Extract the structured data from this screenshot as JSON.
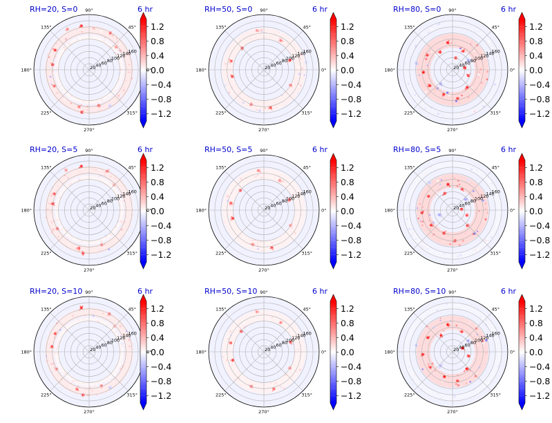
{
  "colors": {
    "title_text": "#0000cc",
    "axis_text": "#000000",
    "grid": "#b0b0b0",
    "bg_blue": "#f1f2ff",
    "bg_red": "#ffecec",
    "positive": "#ff0000",
    "negative": "#0000ff",
    "neutral": "#ffffff"
  },
  "colorbar": {
    "ticks": [
      "1.2",
      "0.8",
      "0.4",
      "0.0",
      "−0.4",
      "−0.8",
      "−1.2"
    ],
    "tick_values": [
      1.2,
      0.8,
      0.4,
      0.0,
      -0.4,
      -0.8,
      -1.2
    ],
    "vmin": -1.4,
    "vmax": 1.4,
    "extend": "both",
    "colormap": "bwr"
  },
  "polar_axis": {
    "angle_labels": [
      "0°",
      "45°",
      "90°",
      "135°",
      "180°",
      "225°",
      "270°",
      "315°"
    ],
    "angle_values_deg": [
      0,
      45,
      90,
      135,
      180,
      225,
      270,
      315
    ],
    "radial_labels": [
      "20",
      "40",
      "60",
      "80",
      "100",
      "120",
      "140",
      "160"
    ],
    "radial_values": [
      20,
      40,
      60,
      80,
      100,
      120,
      140,
      160
    ],
    "rmax": 180
  },
  "chart_data": [
    {
      "type": "heatmap",
      "projection": "polar",
      "title_left": "RH=20, S=0",
      "title_right": "6 hr",
      "rings": [
        {
          "r": 130,
          "width": 28,
          "value": 0.12
        },
        {
          "r": 105,
          "width": 14,
          "value": 0.05
        }
      ],
      "hotspots": [
        {
          "theta": 100,
          "r": 145,
          "v": 1.3
        },
        {
          "theta": 150,
          "r": 128,
          "v": 1.1
        },
        {
          "theta": 172,
          "r": 120,
          "v": 1.2
        },
        {
          "theta": 205,
          "r": 125,
          "v": 0.9
        },
        {
          "theta": 255,
          "r": 125,
          "v": 0.8
        },
        {
          "theta": 260,
          "r": 140,
          "v": 1.2
        },
        {
          "theta": 285,
          "r": 120,
          "v": 0.9
        },
        {
          "theta": 300,
          "r": 135,
          "v": -0.3
        },
        {
          "theta": 40,
          "r": 115,
          "v": 0.6
        },
        {
          "theta": 60,
          "r": 138,
          "v": 0.9
        },
        {
          "theta": 118,
          "r": 150,
          "v": 0.7
        }
      ]
    },
    {
      "type": "heatmap",
      "projection": "polar",
      "title_left": "RH=50, S=0",
      "title_right": "6 hr",
      "rings": [
        {
          "r": 118,
          "width": 36,
          "value": 0.08
        }
      ],
      "hotspots": [
        {
          "theta": 135,
          "r": 100,
          "v": 1.2
        },
        {
          "theta": 165,
          "r": 110,
          "v": 0.9
        },
        {
          "theta": 192,
          "r": 105,
          "v": 1.1
        },
        {
          "theta": 250,
          "r": 120,
          "v": 0.8
        },
        {
          "theta": 280,
          "r": 125,
          "v": 1.0
        },
        {
          "theta": 330,
          "r": 100,
          "v": 0.8
        },
        {
          "theta": 20,
          "r": 90,
          "v": 1.1
        },
        {
          "theta": 60,
          "r": 110,
          "v": 0.7
        },
        {
          "theta": 100,
          "r": 130,
          "v": 0.6
        },
        {
          "theta": 10,
          "r": 140,
          "v": -0.2
        }
      ]
    },
    {
      "type": "heatmap",
      "projection": "polar",
      "title_left": "RH=80, S=0",
      "title_right": "6 hr",
      "rings": [
        {
          "r": 95,
          "width": 45,
          "value": 0.22
        },
        {
          "r": 150,
          "width": 20,
          "value": -0.06
        }
      ],
      "hotspots": [
        {
          "theta": 10,
          "r": 40,
          "v": 1.4
        },
        {
          "theta": 100,
          "r": 90,
          "v": 1.3
        },
        {
          "theta": 125,
          "r": 70,
          "v": 1.2
        },
        {
          "theta": 150,
          "r": 95,
          "v": 1.1
        },
        {
          "theta": 185,
          "r": 95,
          "v": 1.3
        },
        {
          "theta": 215,
          "r": 90,
          "v": 1.2
        },
        {
          "theta": 250,
          "r": 85,
          "v": 1.4
        },
        {
          "theta": 280,
          "r": 95,
          "v": 1.1
        },
        {
          "theta": 310,
          "r": 75,
          "v": 1.2
        },
        {
          "theta": 340,
          "r": 55,
          "v": 1.3
        },
        {
          "theta": 30,
          "r": 60,
          "v": -0.6
        },
        {
          "theta": 60,
          "r": 70,
          "v": 1.1
        },
        {
          "theta": 170,
          "r": 120,
          "v": -0.4
        },
        {
          "theta": 230,
          "r": 60,
          "v": -0.5
        },
        {
          "theta": 75,
          "r": 40,
          "v": 1.2
        }
      ]
    },
    {
      "type": "heatmap",
      "projection": "polar",
      "title_left": "RH=20, S=5",
      "title_right": "6 hr",
      "rings": [
        {
          "r": 130,
          "width": 28,
          "value": 0.11
        },
        {
          "r": 105,
          "width": 14,
          "value": 0.05
        }
      ],
      "hotspots": [
        {
          "theta": 100,
          "r": 145,
          "v": 1.2
        },
        {
          "theta": 155,
          "r": 125,
          "v": 1.0
        },
        {
          "theta": 170,
          "r": 120,
          "v": 1.2
        },
        {
          "theta": 210,
          "r": 120,
          "v": 0.9
        },
        {
          "theta": 255,
          "r": 128,
          "v": 0.9
        },
        {
          "theta": 262,
          "r": 142,
          "v": 1.1
        },
        {
          "theta": 290,
          "r": 120,
          "v": 0.8
        },
        {
          "theta": 45,
          "r": 115,
          "v": 0.5
        },
        {
          "theta": 65,
          "r": 140,
          "v": 0.8
        },
        {
          "theta": 120,
          "r": 150,
          "v": 0.6
        }
      ]
    },
    {
      "type": "heatmap",
      "projection": "polar",
      "title_left": "RH=50, S=5",
      "title_right": "6 hr",
      "rings": [
        {
          "r": 118,
          "width": 36,
          "value": 0.07
        }
      ],
      "hotspots": [
        {
          "theta": 140,
          "r": 100,
          "v": 1.1
        },
        {
          "theta": 168,
          "r": 110,
          "v": 0.9
        },
        {
          "theta": 195,
          "r": 105,
          "v": 1.2
        },
        {
          "theta": 252,
          "r": 118,
          "v": 0.8
        },
        {
          "theta": 282,
          "r": 125,
          "v": 1.0
        },
        {
          "theta": 330,
          "r": 100,
          "v": 0.7
        },
        {
          "theta": 22,
          "r": 90,
          "v": 1.0
        },
        {
          "theta": 62,
          "r": 110,
          "v": 0.6
        },
        {
          "theta": 98,
          "r": 130,
          "v": 0.7
        }
      ]
    },
    {
      "type": "heatmap",
      "projection": "polar",
      "title_left": "RH=80, S=5",
      "title_right": "6 hr",
      "rings": [
        {
          "r": 95,
          "width": 45,
          "value": 0.22
        },
        {
          "r": 150,
          "width": 20,
          "value": -0.05
        }
      ],
      "hotspots": [
        {
          "theta": 5,
          "r": 30,
          "v": 1.4
        },
        {
          "theta": 100,
          "r": 85,
          "v": 1.4
        },
        {
          "theta": 115,
          "r": 60,
          "v": 1.2
        },
        {
          "theta": 150,
          "r": 90,
          "v": 1.2
        },
        {
          "theta": 185,
          "r": 100,
          "v": 1.3
        },
        {
          "theta": 215,
          "r": 85,
          "v": 1.2
        },
        {
          "theta": 250,
          "r": 80,
          "v": 1.3
        },
        {
          "theta": 275,
          "r": 100,
          "v": 1.2
        },
        {
          "theta": 315,
          "r": 70,
          "v": 1.3
        },
        {
          "theta": 340,
          "r": 50,
          "v": 1.1
        },
        {
          "theta": 40,
          "r": 55,
          "v": -0.6
        },
        {
          "theta": 65,
          "r": 75,
          "v": 1.0
        },
        {
          "theta": 200,
          "r": 45,
          "v": -0.5
        },
        {
          "theta": 130,
          "r": 115,
          "v": -0.3
        }
      ]
    },
    {
      "type": "heatmap",
      "projection": "polar",
      "title_left": "RH=20, S=10",
      "title_right": "6 hr",
      "rings": [
        {
          "r": 130,
          "width": 28,
          "value": 0.11
        },
        {
          "r": 105,
          "width": 14,
          "value": 0.05
        }
      ],
      "hotspots": [
        {
          "theta": 100,
          "r": 145,
          "v": 1.2
        },
        {
          "theta": 152,
          "r": 125,
          "v": 1.1
        },
        {
          "theta": 172,
          "r": 122,
          "v": 1.1
        },
        {
          "theta": 208,
          "r": 120,
          "v": 0.8
        },
        {
          "theta": 252,
          "r": 128,
          "v": 0.9
        },
        {
          "theta": 262,
          "r": 142,
          "v": 1.2
        },
        {
          "theta": 290,
          "r": 118,
          "v": 0.8
        },
        {
          "theta": 300,
          "r": 135,
          "v": -0.3
        },
        {
          "theta": 45,
          "r": 118,
          "v": 0.5
        },
        {
          "theta": 62,
          "r": 140,
          "v": 0.8
        }
      ]
    },
    {
      "type": "heatmap",
      "projection": "polar",
      "title_left": "RH=50, S=10",
      "title_right": "6 hr",
      "rings": [
        {
          "r": 118,
          "width": 36,
          "value": 0.07
        }
      ],
      "hotspots": [
        {
          "theta": 138,
          "r": 100,
          "v": 1.1
        },
        {
          "theta": 165,
          "r": 112,
          "v": 1.0
        },
        {
          "theta": 195,
          "r": 105,
          "v": 1.1
        },
        {
          "theta": 250,
          "r": 120,
          "v": 0.8
        },
        {
          "theta": 285,
          "r": 125,
          "v": 1.0
        },
        {
          "theta": 328,
          "r": 100,
          "v": 0.7
        },
        {
          "theta": 20,
          "r": 92,
          "v": 1.0
        },
        {
          "theta": 60,
          "r": 110,
          "v": 0.7
        },
        {
          "theta": 100,
          "r": 132,
          "v": 0.6
        }
      ]
    },
    {
      "type": "heatmap",
      "projection": "polar",
      "title_left": "RH=80, S=10",
      "title_right": "6 hr",
      "rings": [
        {
          "r": 95,
          "width": 45,
          "value": 0.21
        },
        {
          "r": 150,
          "width": 20,
          "value": -0.05
        }
      ],
      "hotspots": [
        {
          "theta": 20,
          "r": 35,
          "v": 1.4
        },
        {
          "theta": 100,
          "r": 90,
          "v": 1.3
        },
        {
          "theta": 125,
          "r": 65,
          "v": 1.2
        },
        {
          "theta": 150,
          "r": 92,
          "v": 1.2
        },
        {
          "theta": 185,
          "r": 98,
          "v": 1.3
        },
        {
          "theta": 215,
          "r": 88,
          "v": 1.1
        },
        {
          "theta": 252,
          "r": 85,
          "v": 1.4
        },
        {
          "theta": 280,
          "r": 96,
          "v": 1.2
        },
        {
          "theta": 310,
          "r": 72,
          "v": 1.3
        },
        {
          "theta": 345,
          "r": 55,
          "v": 1.2
        },
        {
          "theta": 35,
          "r": 62,
          "v": -0.5
        },
        {
          "theta": 65,
          "r": 72,
          "v": 1.1
        },
        {
          "theta": 230,
          "r": 60,
          "v": -0.4
        },
        {
          "theta": 170,
          "r": 120,
          "v": -0.3
        }
      ]
    }
  ]
}
